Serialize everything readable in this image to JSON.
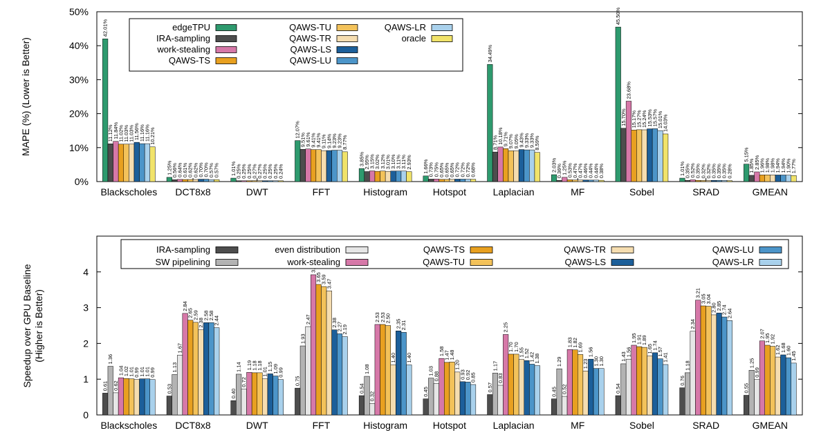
{
  "chart_data": [
    {
      "type": "bar",
      "ylabel": "MAPE (%) (Lower is Better)",
      "ylim": [
        0,
        50
      ],
      "yticks": [
        "0%",
        "10%",
        "20%",
        "30%",
        "40%",
        "50%"
      ],
      "value_format": "percent",
      "categories": [
        "Blackscholes",
        "DCT8x8",
        "DWT",
        "FFT",
        "Histogram",
        "Hotspot",
        "Laplacian",
        "MF",
        "Sobel",
        "SRAD",
        "GMEAN"
      ],
      "series": [
        {
          "name": "edgeTPU",
          "color": "#2e9a6e",
          "values": [
            42.01,
            1.25,
            1.01,
            12.07,
            3.85,
            1.66,
            34.49,
            2.03,
            45.5,
            1.01,
            5.15
          ]
        },
        {
          "name": "IRA-sampling",
          "color": "#4d4d4d",
          "values": [
            11.12,
            0.56,
            0.25,
            9.51,
            2.95,
            0.73,
            8.71,
            0.36,
            15.7,
            0.35,
            1.85
          ]
        },
        {
          "name": "work-stealing",
          "color": "#d678a8",
          "values": [
            11.84,
            0.64,
            0.25,
            9.61,
            3.15,
            0.75,
            10.18,
            1.25,
            23.68,
            0.52,
            2.85
          ]
        },
        {
          "name": "QAWS-TS",
          "color": "#e8a020",
          "values": [
            11.02,
            0.61,
            0.25,
            9.41,
            3.02,
            0.65,
            9.71,
            0.53,
            15.17,
            0.35,
            1.96
          ]
        },
        {
          "name": "QAWS-TU",
          "color": "#f3c25a",
          "values": [
            11.03,
            0.62,
            0.27,
            9.41,
            3.12,
            0.65,
            9.07,
            0.47,
            15.27,
            0.32,
            1.98
          ]
        },
        {
          "name": "QAWS-TR",
          "color": "#f5ddb0",
          "values": [
            11.03,
            0.62,
            0.27,
            9.11,
            3.01,
            0.65,
            9.05,
            0.47,
            15.24,
            0.32,
            1.98
          ]
        },
        {
          "name": "QAWS-LS",
          "color": "#1c5f9a",
          "values": [
            11.56,
            0.7,
            0.25,
            9.14,
            3.1,
            0.72,
            9.43,
            0.46,
            15.53,
            0.35,
            1.94
          ]
        },
        {
          "name": "QAWS-LU",
          "color": "#4c95c9",
          "values": [
            11.16,
            0.7,
            0.25,
            9.23,
            3.11,
            0.72,
            9.33,
            0.44,
            15.57,
            0.35,
            1.94
          ]
        },
        {
          "name": "QAWS-LR",
          "color": "#a9d1ec",
          "values": [
            11.16,
            0.57,
            0.25,
            9.23,
            3.11,
            0.72,
            9.33,
            0.44,
            15.01,
            0.35,
            1.9
          ]
        },
        {
          "name": "oracle",
          "color": "#f1e36a",
          "values": [
            10.21,
            0.57,
            0.24,
            8.77,
            2.93,
            0.68,
            8.59,
            0.38,
            14.03,
            0.28,
            1.77
          ]
        }
      ],
      "legend": {
        "position": "top-left",
        "columns": [
          [
            "edgeTPU",
            "IRA-sampling",
            "work-stealing",
            "QAWS-TS"
          ],
          [
            "QAWS-TU",
            "QAWS-TR",
            "QAWS-LS",
            "QAWS-LU"
          ],
          [
            "QAWS-LR",
            "oracle"
          ]
        ]
      }
    },
    {
      "type": "bar",
      "ylabel": "Speedup over GPU Baseline (Higher is Better)",
      "ylim": [
        0,
        5
      ],
      "yticks": [
        "0",
        "1",
        "2",
        "3",
        "4"
      ],
      "value_format": "plain",
      "categories": [
        "Blackscholes",
        "DCT8x8",
        "DWT",
        "FFT",
        "Histogram",
        "Hotspot",
        "Laplacian",
        "MF",
        "Sobel",
        "SRAD",
        "GMEAN"
      ],
      "series": [
        {
          "name": "IRA-sampling",
          "color": "#4d4d4d",
          "values": [
            0.61,
            0.53,
            0.4,
            0.75,
            0.54,
            0.45,
            0.57,
            0.45,
            0.54,
            0.76,
            0.55
          ]
        },
        {
          "name": "SW pipelining",
          "color": "#b3b3b3",
          "values": [
            1.36,
            1.13,
            1.14,
            1.93,
            1.08,
            1.03,
            1.17,
            1.29,
            1.43,
            1.18,
            1.25
          ]
        },
        {
          "name": "even distribution",
          "color": "#e6e6e6",
          "values": [
            0.62,
            1.67,
            0.72,
            2.47,
            0.32,
            0.88,
            0.83,
            0.52,
            1.56,
            2.34,
            0.99
          ]
        },
        {
          "name": "work-stealing",
          "color": "#d678a8",
          "values": [
            1.04,
            2.84,
            1.19,
            3.92,
            2.53,
            1.58,
            2.25,
            1.83,
            1.95,
            3.21,
            2.07
          ]
        },
        {
          "name": "QAWS-TS",
          "color": "#e8a020",
          "values": [
            1.02,
            2.65,
            1.18,
            3.65,
            2.53,
            1.47,
            1.7,
            1.82,
            1.91,
            3.05,
            1.95
          ]
        },
        {
          "name": "QAWS-TU",
          "color": "#f3c25a",
          "values": [
            1.01,
            2.59,
            1.18,
            3.59,
            2.5,
            1.48,
            1.7,
            1.69,
            1.89,
            3.04,
            1.92
          ]
        },
        {
          "name": "QAWS-TR",
          "color": "#f5ddb0",
          "values": [
            0.99,
            2.38,
            1.01,
            3.47,
            1.4,
            1.2,
            1.55,
            1.23,
            1.65,
            2.8,
            1.62
          ]
        },
        {
          "name": "QAWS-LS",
          "color": "#1c5f9a",
          "values": [
            1.01,
            2.58,
            1.15,
            2.38,
            2.35,
            0.93,
            1.52,
            1.56,
            1.74,
            2.85,
            1.68
          ]
        },
        {
          "name": "QAWS-LU",
          "color": "#4c95c9",
          "values": [
            1.01,
            2.58,
            1.09,
            2.27,
            2.31,
            0.92,
            1.42,
            1.3,
            1.57,
            2.74,
            1.6
          ]
        },
        {
          "name": "QAWS-LR",
          "color": "#a9d1ec",
          "values": [
            0.99,
            2.44,
            0.99,
            2.19,
            1.4,
            0.85,
            1.38,
            1.3,
            1.41,
            2.64,
            1.45
          ]
        }
      ],
      "legend": {
        "position": "top",
        "columns": [
          [
            "IRA-sampling",
            "SW pipelining"
          ],
          [
            "even distribution",
            "work-stealing"
          ],
          [
            "QAWS-TS",
            "QAWS-TU"
          ],
          [
            "QAWS-TR",
            "QAWS-LS"
          ],
          [
            "QAWS-LU",
            "QAWS-LR"
          ]
        ]
      }
    }
  ]
}
